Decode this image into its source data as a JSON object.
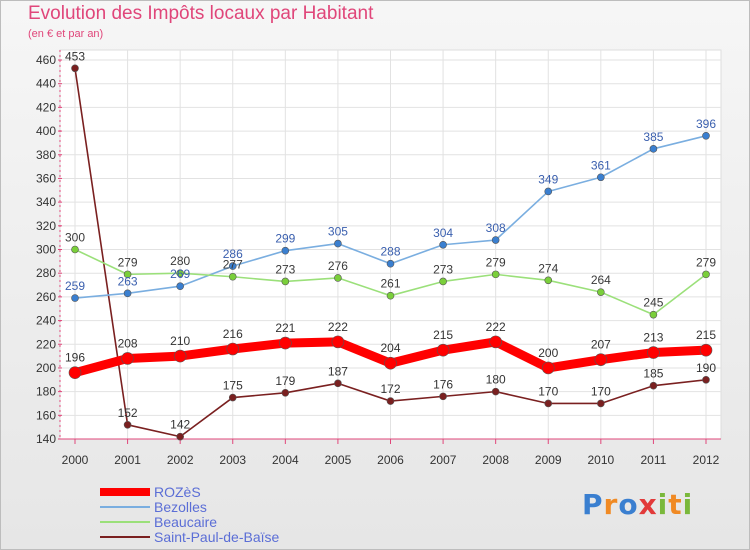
{
  "header": {
    "title": "Evolution des Impôts locaux par Habitant",
    "subtitle": "(en € et par an)"
  },
  "logo": {
    "text": "Proxiti",
    "colors": [
      "#3a7fd0",
      "#f08a24",
      "#3a7fd0",
      "#e23a3a",
      "#7ab83b",
      "#f08a24",
      "#7ab83b"
    ]
  },
  "chart_data": {
    "type": "line",
    "title": "Evolution des Impôts locaux par Habitant",
    "subtitle": "(en € et par an)",
    "xlabel": "",
    "ylabel": "",
    "x": [
      "2000",
      "2001",
      "2002",
      "2003",
      "2004",
      "2005",
      "2006",
      "2007",
      "2008",
      "2009",
      "2010",
      "2011",
      "2012"
    ],
    "ylim": [
      140,
      460
    ],
    "yticks": [
      140,
      160,
      180,
      200,
      220,
      240,
      260,
      280,
      300,
      320,
      340,
      360,
      380,
      400,
      420,
      440,
      460
    ],
    "grid": true,
    "legend_position": "bottom-left",
    "series": [
      {
        "name": "ROZèS",
        "color": "#ff0000",
        "values": [
          196,
          208,
          210,
          216,
          221,
          222,
          204,
          215,
          222,
          200,
          207,
          213,
          215
        ]
      },
      {
        "name": "Bezolles",
        "color": "#7aaee0",
        "values": [
          259,
          263,
          269,
          286,
          299,
          305,
          288,
          304,
          308,
          349,
          361,
          385,
          396
        ]
      },
      {
        "name": "Beaucaire",
        "color": "#9be07a",
        "values": [
          300,
          279,
          280,
          277,
          273,
          276,
          261,
          273,
          279,
          274,
          264,
          245,
          279
        ]
      },
      {
        "name": "Saint-Paul-de-Baïse",
        "color": "#7a2020",
        "values": [
          453,
          152,
          142,
          175,
          179,
          187,
          172,
          176,
          180,
          170,
          170,
          185,
          190
        ]
      }
    ],
    "data_labels": {
      "ROZèS": [
        "196",
        "208",
        "210",
        "216",
        "221",
        "222",
        "204",
        "215",
        "222",
        "200",
        "207",
        "213",
        "215"
      ],
      "Bezolles": [
        "259",
        "263",
        "269",
        "286",
        "299",
        "305",
        "288",
        "304",
        "308",
        "349",
        "361",
        "385",
        "396"
      ],
      "Beaucaire": [
        "300",
        "279",
        "280",
        "277",
        "273",
        "276",
        "261",
        "273",
        "279",
        "274",
        "264",
        "245",
        "279"
      ],
      "Saint-Paul-de-Baïse": [
        "453",
        "152",
        "142",
        "175",
        "179",
        "187",
        "172",
        "176",
        "180",
        "170",
        "170",
        "185",
        "190"
      ]
    }
  },
  "legend": {
    "items": [
      {
        "label": "ROZèS"
      },
      {
        "label": "Bezolles"
      },
      {
        "label": "Beaucaire"
      },
      {
        "label": "Saint-Paul-de-Baïse"
      }
    ]
  }
}
